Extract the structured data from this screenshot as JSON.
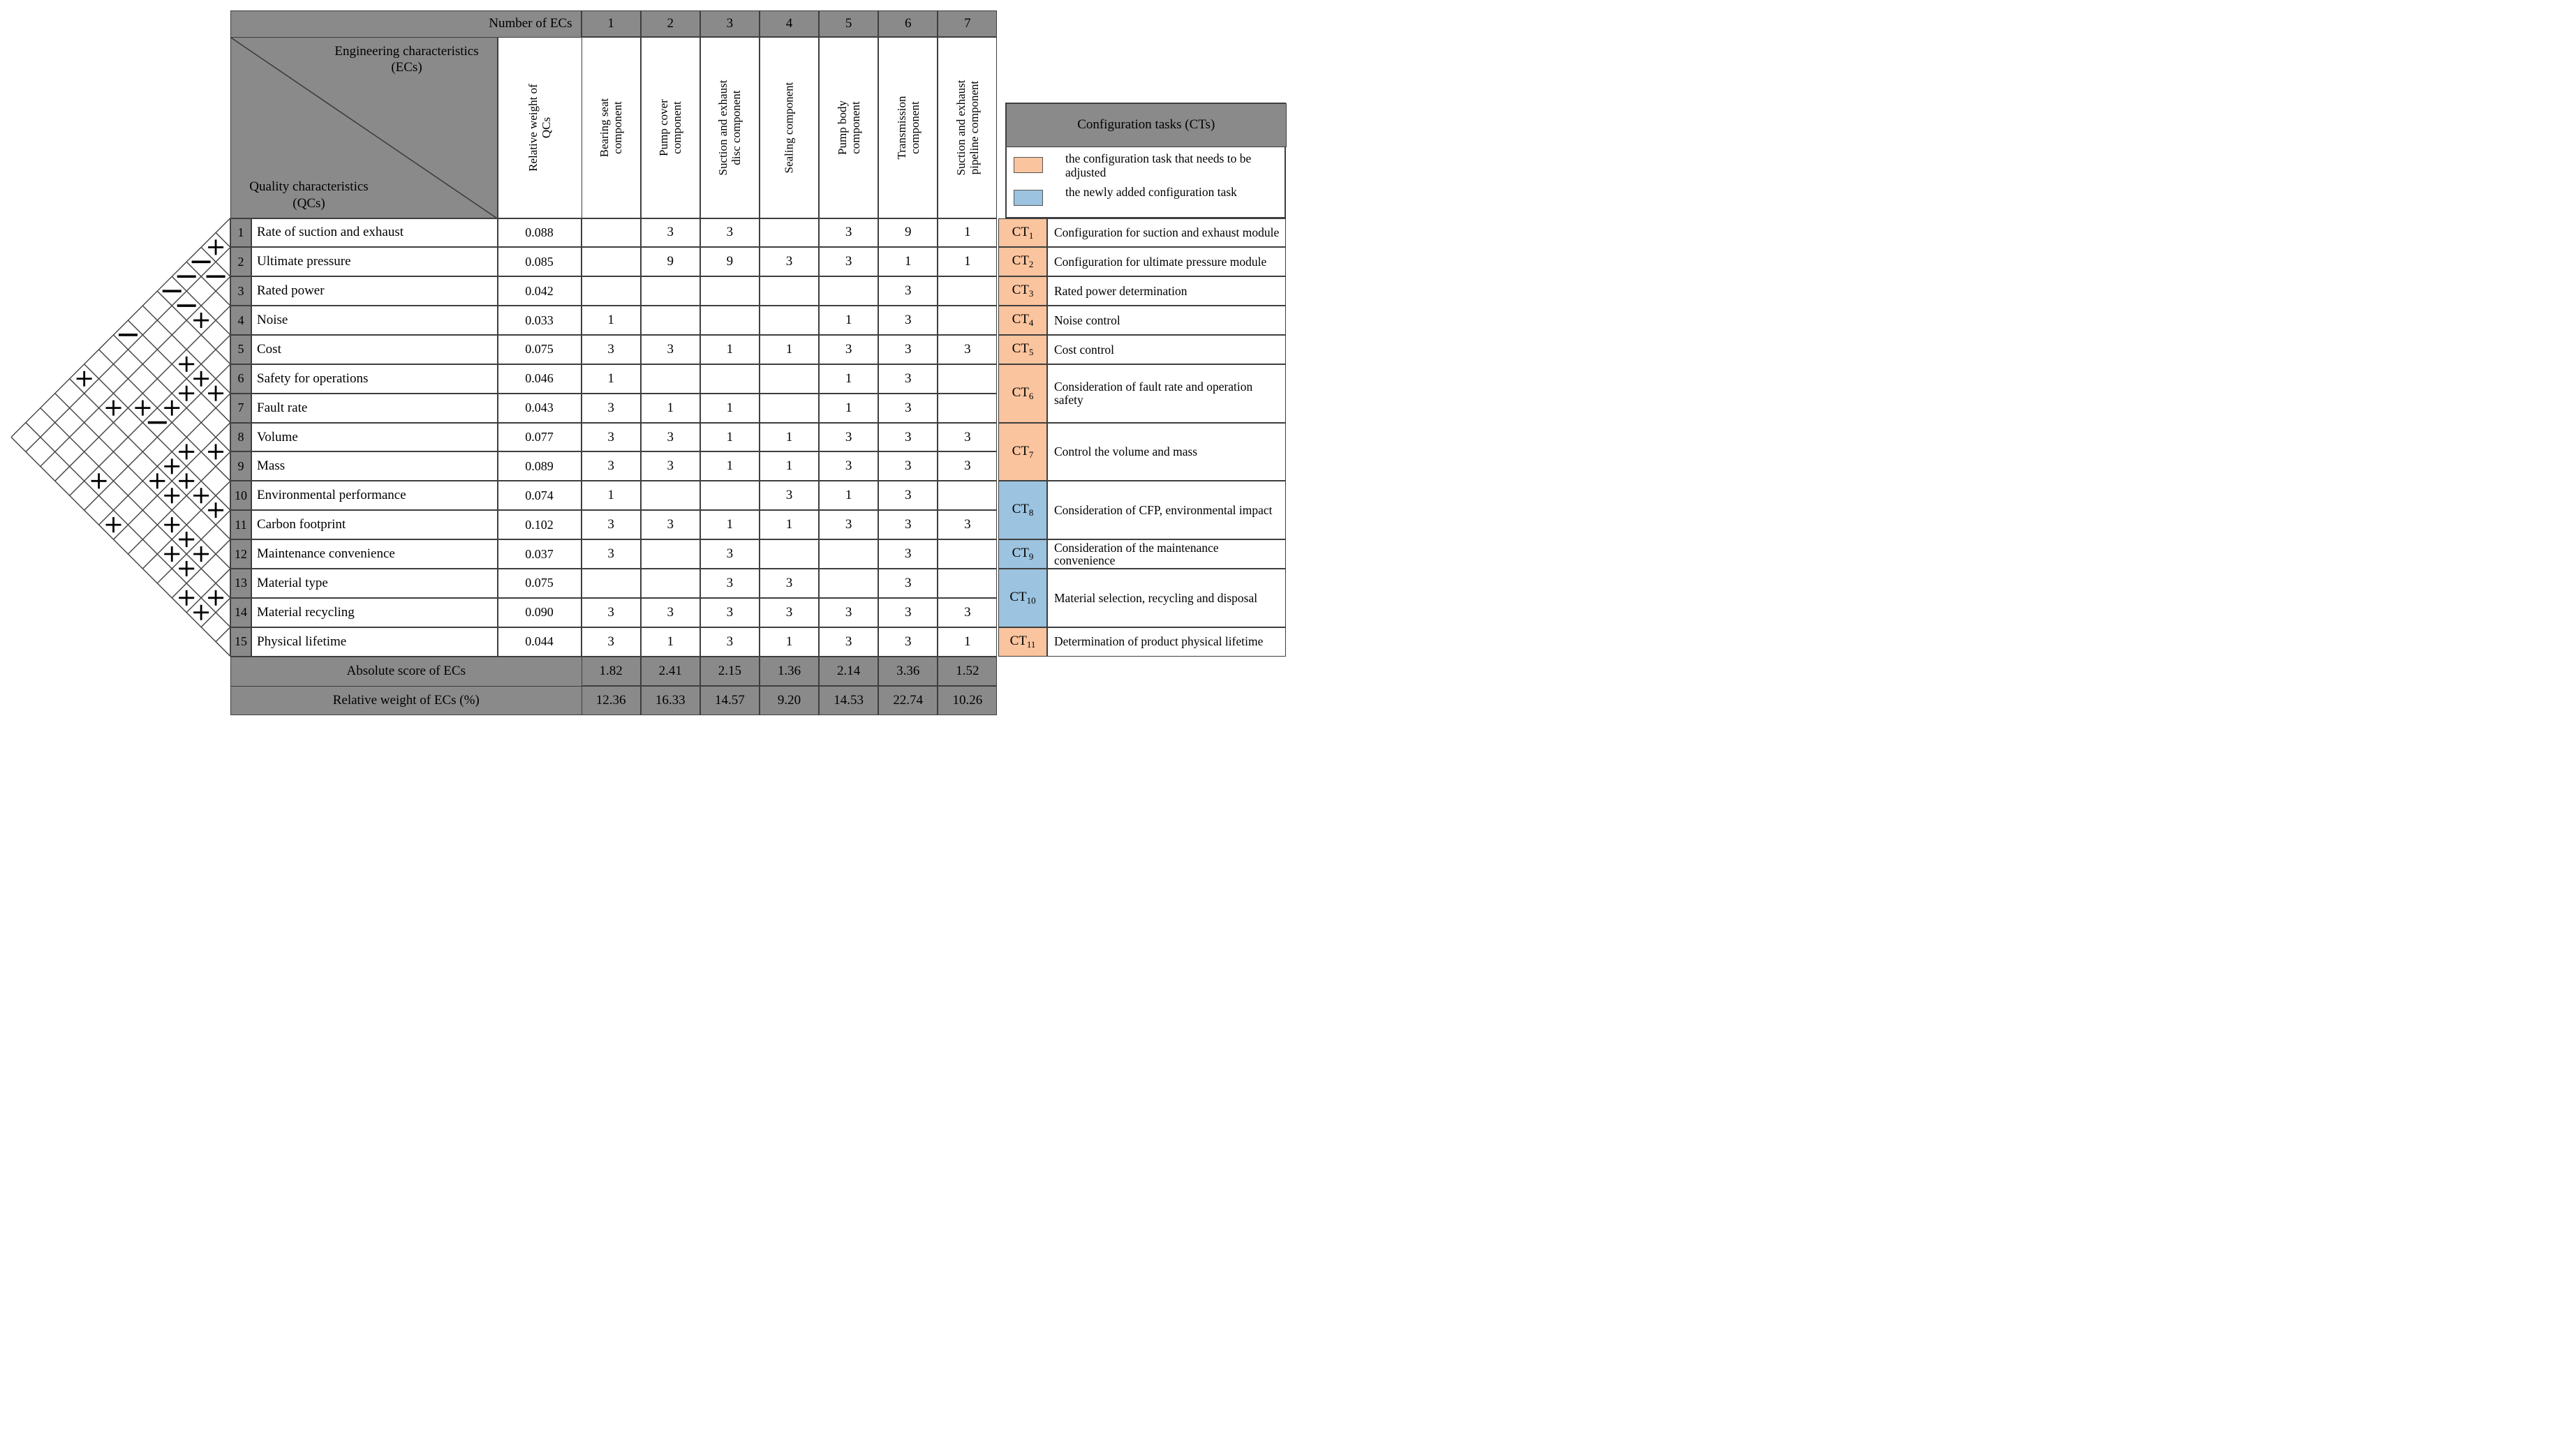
{
  "header": {
    "number_of_ecs_label": "Number of ECs",
    "ec_numbers": [
      "1",
      "2",
      "3",
      "4",
      "5",
      "6",
      "7"
    ],
    "diagonal_top": "Engineering characteristics (ECs)",
    "diagonal_bottom": "Quality characteristics (QCs)",
    "weight_col_label": "Relative weight of QCs",
    "ec_columns": [
      "Bearing seat component",
      "Pump cover component",
      "Suction and exhaust disc component",
      "Sealing component",
      "Pump body component",
      "Transmission component",
      "Suction and exhaust pipeline component"
    ]
  },
  "rows": [
    {
      "num": "1",
      "name": "Rate of suction and exhaust",
      "weight": "0.088",
      "values": [
        "",
        "3",
        "3",
        "",
        "3",
        "9",
        "1"
      ]
    },
    {
      "num": "2",
      "name": "Ultimate pressure",
      "weight": "0.085",
      "values": [
        "",
        "9",
        "9",
        "3",
        "3",
        "1",
        "1"
      ]
    },
    {
      "num": "3",
      "name": "Rated power",
      "weight": "0.042",
      "values": [
        "",
        "",
        "",
        "",
        "",
        "3",
        ""
      ]
    },
    {
      "num": "4",
      "name": "Noise",
      "weight": "0.033",
      "values": [
        "1",
        "",
        "",
        "",
        "1",
        "3",
        ""
      ]
    },
    {
      "num": "5",
      "name": "Cost",
      "weight": "0.075",
      "values": [
        "3",
        "3",
        "1",
        "1",
        "3",
        "3",
        "3"
      ]
    },
    {
      "num": "6",
      "name": "Safety for operations",
      "weight": "0.046",
      "values": [
        "1",
        "",
        "",
        "",
        "1",
        "3",
        ""
      ]
    },
    {
      "num": "7",
      "name": "Fault rate",
      "weight": "0.043",
      "values": [
        "3",
        "1",
        "1",
        "",
        "1",
        "3",
        ""
      ]
    },
    {
      "num": "8",
      "name": "Volume",
      "weight": "0.077",
      "values": [
        "3",
        "3",
        "1",
        "1",
        "3",
        "3",
        "3"
      ]
    },
    {
      "num": "9",
      "name": "Mass",
      "weight": "0.089",
      "values": [
        "3",
        "3",
        "1",
        "1",
        "3",
        "3",
        "3"
      ]
    },
    {
      "num": "10",
      "name": "Environmental performance",
      "weight": "0.074",
      "values": [
        "1",
        "",
        "",
        "3",
        "1",
        "3",
        ""
      ]
    },
    {
      "num": "11",
      "name": "Carbon footprint",
      "weight": "0.102",
      "values": [
        "3",
        "3",
        "1",
        "1",
        "3",
        "3",
        "3"
      ]
    },
    {
      "num": "12",
      "name": "Maintenance convenience",
      "weight": "0.037",
      "values": [
        "3",
        "",
        "3",
        "",
        "",
        "3",
        ""
      ]
    },
    {
      "num": "13",
      "name": "Material type",
      "weight": "0.075",
      "values": [
        "",
        "",
        "3",
        "3",
        "",
        "3",
        ""
      ]
    },
    {
      "num": "14",
      "name": "Material recycling",
      "weight": "0.090",
      "values": [
        "3",
        "3",
        "3",
        "3",
        "3",
        "3",
        "3"
      ]
    },
    {
      "num": "15",
      "name": "Physical lifetime",
      "weight": "0.044",
      "values": [
        "3",
        "1",
        "3",
        "1",
        "3",
        "3",
        "1"
      ]
    }
  ],
  "footer": {
    "absolute_label": "Absolute score of ECs",
    "absolute_values": [
      "1.82",
      "2.41",
      "2.15",
      "1.36",
      "2.14",
      "3.36",
      "1.52"
    ],
    "relative_label": "Relative weight of ECs (%)",
    "relative_values": [
      "12.36",
      "16.33",
      "14.57",
      "9.20",
      "14.53",
      "22.74",
      "10.26"
    ]
  },
  "legend": {
    "title": "Configuration tasks (CTs)",
    "adjusted_label": "the configuration task that needs to be adjusted",
    "new_label": "the newly added configuration task"
  },
  "tasks": [
    {
      "label": "CT",
      "sub": "1",
      "type": "adjusted",
      "rows": [
        1,
        1
      ],
      "desc": "Configuration for suction and exhaust module"
    },
    {
      "label": "CT",
      "sub": "2",
      "type": "adjusted",
      "rows": [
        2,
        2
      ],
      "desc": "Configuration for ultimate pressure module"
    },
    {
      "label": "CT",
      "sub": "3",
      "type": "adjusted",
      "rows": [
        3,
        3
      ],
      "desc": "Rated power determination"
    },
    {
      "label": "CT",
      "sub": "4",
      "type": "adjusted",
      "rows": [
        4,
        4
      ],
      "desc": "Noise control"
    },
    {
      "label": "CT",
      "sub": "5",
      "type": "adjusted",
      "rows": [
        5,
        5
      ],
      "desc": "Cost control"
    },
    {
      "label": "CT",
      "sub": "6",
      "type": "adjusted",
      "rows": [
        6,
        7
      ],
      "desc": "Consideration of fault rate and operation safety"
    },
    {
      "label": "CT",
      "sub": "7",
      "type": "adjusted",
      "rows": [
        8,
        9
      ],
      "desc": "Control the volume and mass"
    },
    {
      "label": "CT",
      "sub": "8",
      "type": "new",
      "rows": [
        10,
        11
      ],
      "desc": "Consideration of CFP, environmental impact"
    },
    {
      "label": "CT",
      "sub": "9",
      "type": "new",
      "rows": [
        12,
        12
      ],
      "desc": "Consideration of the maintenance convenience"
    },
    {
      "label": "CT",
      "sub": "10",
      "type": "new",
      "rows": [
        13,
        14
      ],
      "desc": "Material selection, recycling and disposal"
    },
    {
      "label": "CT",
      "sub": "11",
      "type": "adjusted",
      "rows": [
        15,
        15
      ],
      "desc": "Determination of product physical lifetime"
    }
  ],
  "roof_marks": [
    {
      "i": 1,
      "j": 2,
      "s": "+"
    },
    {
      "i": 1,
      "j": 3,
      "s": "-"
    },
    {
      "i": 1,
      "j": 4,
      "s": "-"
    },
    {
      "i": 1,
      "j": 5,
      "s": "-"
    },
    {
      "i": 1,
      "j": 8,
      "s": "-"
    },
    {
      "i": 1,
      "j": 11,
      "s": "+"
    },
    {
      "i": 2,
      "j": 3,
      "s": "-"
    },
    {
      "i": 2,
      "j": 5,
      "s": "-"
    },
    {
      "i": 3,
      "j": 5,
      "s": "+"
    },
    {
      "i": 3,
      "j": 11,
      "s": "+"
    },
    {
      "i": 4,
      "j": 7,
      "s": "+"
    },
    {
      "i": 4,
      "j": 10,
      "s": "+"
    },
    {
      "i": 5,
      "j": 7,
      "s": "+"
    },
    {
      "i": 5,
      "j": 8,
      "s": "+"
    },
    {
      "i": 5,
      "j": 9,
      "s": "+"
    },
    {
      "i": 5,
      "j": 10,
      "s": "-"
    },
    {
      "i": 5,
      "j": 14,
      "s": "+"
    },
    {
      "i": 6,
      "j": 7,
      "s": "+"
    },
    {
      "i": 7,
      "j": 10,
      "s": "+"
    },
    {
      "i": 7,
      "j": 11,
      "s": "+"
    },
    {
      "i": 7,
      "j": 12,
      "s": "+"
    },
    {
      "i": 7,
      "j": 15,
      "s": "+"
    },
    {
      "i": 8,
      "j": 9,
      "s": "+"
    },
    {
      "i": 8,
      "j": 11,
      "s": "+"
    },
    {
      "i": 8,
      "j": 12,
      "s": "+"
    },
    {
      "i": 9,
      "j": 11,
      "s": "+"
    },
    {
      "i": 9,
      "j": 13,
      "s": "+"
    },
    {
      "i": 10,
      "j": 11,
      "s": "+"
    },
    {
      "i": 10,
      "j": 13,
      "s": "+"
    },
    {
      "i": 10,
      "j": 14,
      "s": "+"
    },
    {
      "i": 11,
      "j": 13,
      "s": "+"
    },
    {
      "i": 11,
      "j": 14,
      "s": "+"
    },
    {
      "i": 12,
      "j": 15,
      "s": "+"
    },
    {
      "i": 13,
      "j": 14,
      "s": "+"
    },
    {
      "i": 13,
      "j": 15,
      "s": "+"
    }
  ],
  "colors": {
    "grid_gray": "#8A8A8A",
    "line": "#3E3E3E",
    "task_adjusted": "#FAC49E",
    "task_new": "#9CC3DF"
  }
}
